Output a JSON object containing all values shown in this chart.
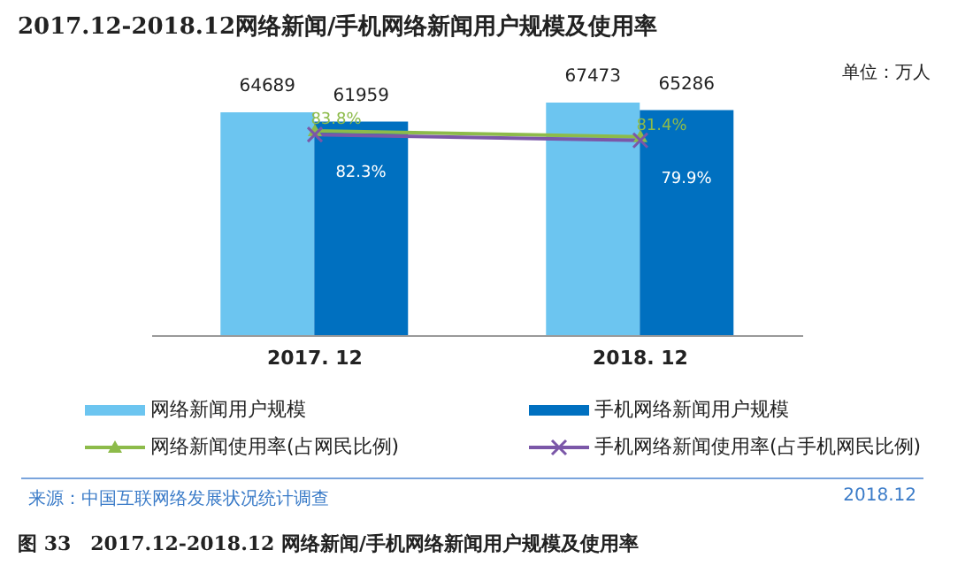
{
  "chart_data": {
    "type": "bar",
    "title": "2017.12-2018.12网络新闻/手机网络新闻用户规模及使用率",
    "categories": [
      "2017. 12",
      "2018. 12"
    ],
    "series": [
      {
        "name": "网络新闻用户规模",
        "color": "#6cc5f0",
        "values": [
          64689,
          67473
        ]
      },
      {
        "name": "手机网络新闻用户规模",
        "color": "#0070c0",
        "values": [
          61959,
          65286
        ]
      },
      {
        "name": "网络新闻使用率(占网民比例)",
        "type": "line",
        "axis": "y2",
        "marker": "triangle",
        "color": "#8dbb4a",
        "values": [
          83.8,
          81.4
        ],
        "value_labels": [
          "83.8%",
          "81.4%"
        ]
      },
      {
        "name": "手机网络新闻使用率(占手机网民比例)",
        "type": "line",
        "axis": "y2",
        "marker": "cross",
        "color": "#7b57a8",
        "values": [
          82.3,
          79.9
        ],
        "value_labels": [
          "82.3%",
          "79.9%"
        ]
      }
    ],
    "data_labels": true,
    "legend": "bottom",
    "grid": false,
    "annotations": [
      "单位：万人",
      "来源：中国互联网络发展状况统计调查",
      "2018.12",
      "图 33　2017.12-2018.12 网络新闻/手机网络新闻用户规模及使用率"
    ]
  }
}
